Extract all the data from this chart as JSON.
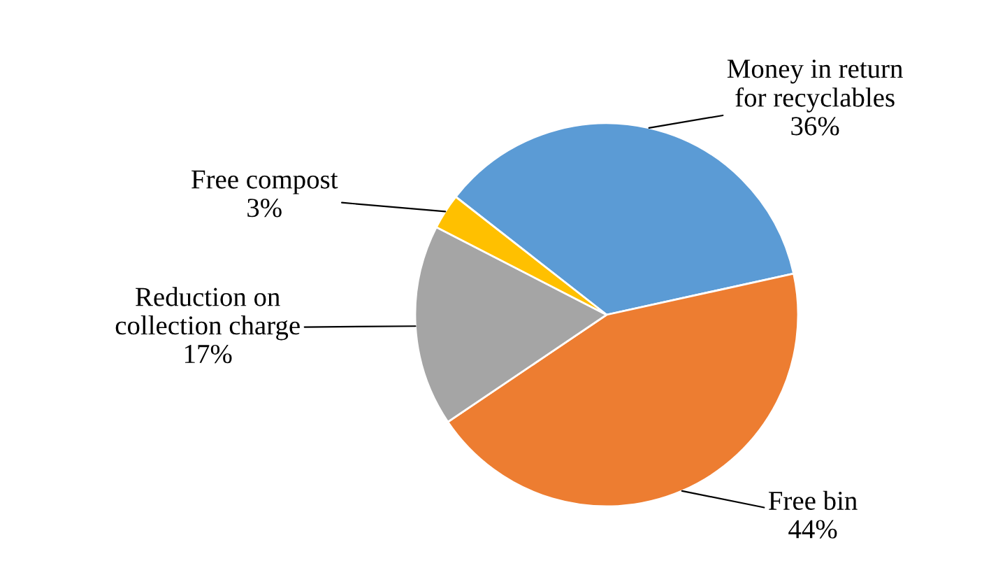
{
  "chart_data": {
    "type": "pie",
    "categories": [
      "Money in return\nfor recyclables",
      "Free bin",
      "Reduction on\ncollection charge",
      "Free compost"
    ],
    "values": [
      36,
      44,
      17,
      3
    ],
    "value_labels": [
      "36%",
      "44%",
      "17%",
      "3%"
    ],
    "colors": [
      "#5b9bd5",
      "#ed7d31",
      "#a5a5a5",
      "#ffc000"
    ]
  }
}
